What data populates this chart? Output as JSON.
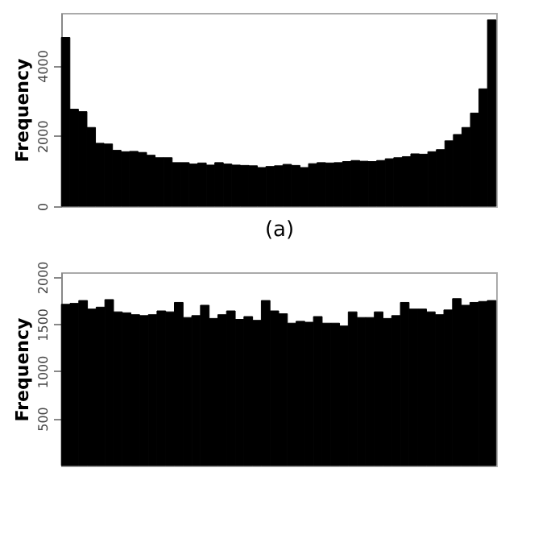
{
  "chart_data": [
    {
      "type": "bar",
      "xlabel": "(a)",
      "ylabel": "Frequency",
      "categories": [
        null,
        null,
        null,
        null,
        null,
        null,
        null,
        null,
        null,
        null,
        null,
        null,
        null,
        null,
        null,
        null,
        null,
        null,
        null,
        null,
        null,
        null,
        null,
        null,
        null,
        null,
        null,
        null,
        null,
        null,
        null,
        null,
        null,
        null,
        null,
        null,
        null,
        null,
        null,
        null,
        null,
        null,
        null,
        null,
        null,
        null,
        null,
        null,
        null,
        null,
        null
      ],
      "series": [
        {
          "color": "#000000",
          "values": [
            4800,
            2760,
            2690,
            2240,
            1790,
            1770,
            1590,
            1550,
            1560,
            1530,
            1450,
            1380,
            1380,
            1240,
            1240,
            1200,
            1230,
            1170,
            1240,
            1200,
            1170,
            1160,
            1150,
            1100,
            1130,
            1150,
            1190,
            1160,
            1100,
            1210,
            1240,
            1230,
            1240,
            1270,
            1300,
            1280,
            1270,
            1300,
            1350,
            1380,
            1410,
            1490,
            1480,
            1550,
            1610,
            1860,
            2040,
            2240,
            2650,
            3340,
            5300
          ]
        }
      ],
      "ylim": [
        0,
        5500
      ],
      "yticks": [
        0,
        2000,
        4000
      ],
      "tick_labels": "y"
    },
    {
      "type": "bar",
      "ylabel": "Frequency",
      "categories": [
        null,
        null,
        null,
        null,
        null,
        null,
        null,
        null,
        null,
        null,
        null,
        null,
        null,
        null,
        null,
        null,
        null,
        null,
        null,
        null,
        null,
        null,
        null,
        null,
        null,
        null,
        null,
        null,
        null,
        null,
        null,
        null,
        null,
        null,
        null,
        null,
        null,
        null,
        null,
        null,
        null,
        null,
        null,
        null,
        null,
        null,
        null,
        null,
        null,
        null
      ],
      "series": [
        {
          "color": "#000000",
          "values": [
            1710,
            1720,
            1750,
            1660,
            1680,
            1760,
            1630,
            1620,
            1600,
            1590,
            1600,
            1640,
            1630,
            1730,
            1570,
            1590,
            1700,
            1560,
            1600,
            1640,
            1550,
            1580,
            1540,
            1750,
            1640,
            1610,
            1510,
            1530,
            1520,
            1580,
            1510,
            1510,
            1480,
            1630,
            1570,
            1570,
            1630,
            1560,
            1590,
            1730,
            1660,
            1660,
            1630,
            1600,
            1650,
            1770,
            1700,
            1730,
            1740,
            1750
          ]
        }
      ],
      "ylim": [
        0,
        2050
      ],
      "yticks": [
        500,
        1000,
        1500,
        2000
      ],
      "tick_labels": "y"
    }
  ]
}
